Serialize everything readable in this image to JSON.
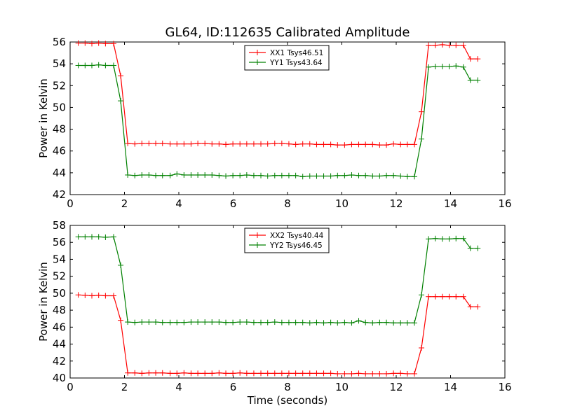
{
  "title": "GL64, ID:112635 Calibrated Amplitude",
  "colors": {
    "red": "#ff0000",
    "green": "#008000"
  },
  "chart_data": [
    {
      "type": "line",
      "xlabel": "",
      "ylabel": "Power in Kelvin",
      "xlim": [
        0,
        16
      ],
      "ylim": [
        42,
        56
      ],
      "xticks": [
        "0",
        "2",
        "4",
        "6",
        "8",
        "10",
        "12",
        "14",
        "16"
      ],
      "yticks": [
        "42",
        "44",
        "46",
        "48",
        "50",
        "52",
        "54",
        "56"
      ],
      "legend_placement": "upper-center",
      "grid": false,
      "series": [
        {
          "name": "XX1 Tsys46.51",
          "color": "#ff0000",
          "x": [
            0.3,
            0.55,
            0.8,
            1.05,
            1.3,
            1.6,
            1.86,
            2.12,
            2.38,
            2.64,
            2.9,
            3.15,
            3.4,
            3.68,
            3.93,
            4.19,
            4.45,
            4.7,
            4.96,
            5.22,
            5.48,
            5.73,
            5.99,
            6.25,
            6.5,
            6.76,
            7.02,
            7.27,
            7.53,
            7.79,
            8.05,
            8.3,
            8.56,
            8.82,
            9.07,
            9.33,
            9.59,
            9.84,
            10.1,
            10.36,
            10.62,
            10.87,
            11.13,
            11.39,
            11.64,
            11.9,
            12.16,
            12.41,
            12.67,
            12.93,
            13.19,
            13.44,
            13.7,
            13.95,
            14.2,
            14.47,
            14.73,
            15.0
          ],
          "y": [
            55.9,
            55.9,
            55.85,
            55.9,
            55.85,
            55.85,
            52.9,
            46.7,
            46.65,
            46.7,
            46.7,
            46.7,
            46.7,
            46.65,
            46.65,
            46.65,
            46.65,
            46.7,
            46.7,
            46.65,
            46.65,
            46.6,
            46.65,
            46.65,
            46.65,
            46.65,
            46.65,
            46.65,
            46.7,
            46.7,
            46.65,
            46.6,
            46.65,
            46.65,
            46.6,
            46.6,
            46.6,
            46.55,
            46.55,
            46.6,
            46.6,
            46.6,
            46.6,
            46.55,
            46.55,
            46.65,
            46.6,
            46.6,
            46.6,
            49.6,
            55.7,
            55.7,
            55.75,
            55.7,
            55.7,
            55.7,
            54.45,
            54.45
          ]
        },
        {
          "name": "YY1 Tsys43.64",
          "color": "#008000",
          "x": [
            0.3,
            0.55,
            0.8,
            1.05,
            1.3,
            1.6,
            1.86,
            2.12,
            2.38,
            2.64,
            2.9,
            3.15,
            3.4,
            3.68,
            3.93,
            4.19,
            4.45,
            4.7,
            4.96,
            5.22,
            5.48,
            5.73,
            5.99,
            6.25,
            6.5,
            6.76,
            7.02,
            7.27,
            7.53,
            7.79,
            8.05,
            8.3,
            8.56,
            8.82,
            9.07,
            9.33,
            9.59,
            9.84,
            10.1,
            10.36,
            10.62,
            10.87,
            11.13,
            11.39,
            11.64,
            11.9,
            12.16,
            12.41,
            12.67,
            12.93,
            13.19,
            13.44,
            13.7,
            13.95,
            14.2,
            14.47,
            14.73,
            15.0
          ],
          "y": [
            53.85,
            53.85,
            53.85,
            53.9,
            53.85,
            53.85,
            50.6,
            43.8,
            43.75,
            43.8,
            43.8,
            43.75,
            43.75,
            43.75,
            43.9,
            43.8,
            43.8,
            43.8,
            43.8,
            43.8,
            43.75,
            43.7,
            43.75,
            43.75,
            43.8,
            43.75,
            43.75,
            43.7,
            43.75,
            43.75,
            43.75,
            43.75,
            43.65,
            43.7,
            43.7,
            43.7,
            43.7,
            43.75,
            43.75,
            43.8,
            43.75,
            43.75,
            43.7,
            43.7,
            43.75,
            43.75,
            43.7,
            43.65,
            43.65,
            47.1,
            53.7,
            53.75,
            53.75,
            53.75,
            53.8,
            53.7,
            52.5,
            52.5
          ]
        }
      ]
    },
    {
      "type": "line",
      "xlabel": "Time (seconds)",
      "ylabel": "Power in Kelvin",
      "xlim": [
        0,
        16
      ],
      "ylim": [
        40,
        58
      ],
      "xticks": [
        "0",
        "2",
        "4",
        "6",
        "8",
        "10",
        "12",
        "14",
        "16"
      ],
      "yticks": [
        "40",
        "42",
        "44",
        "46",
        "48",
        "50",
        "52",
        "54",
        "56",
        "58"
      ],
      "legend_placement": "upper-center",
      "grid": false,
      "series": [
        {
          "name": "XX2 Tsys40.44",
          "color": "#ff0000",
          "x": [
            0.3,
            0.55,
            0.8,
            1.05,
            1.3,
            1.6,
            1.86,
            2.12,
            2.38,
            2.64,
            2.9,
            3.15,
            3.4,
            3.68,
            3.93,
            4.19,
            4.45,
            4.7,
            4.96,
            5.22,
            5.48,
            5.73,
            5.99,
            6.25,
            6.5,
            6.76,
            7.02,
            7.27,
            7.53,
            7.79,
            8.05,
            8.3,
            8.56,
            8.82,
            9.07,
            9.33,
            9.59,
            9.84,
            10.1,
            10.36,
            10.62,
            10.87,
            11.13,
            11.39,
            11.64,
            11.9,
            12.16,
            12.41,
            12.67,
            12.93,
            13.19,
            13.44,
            13.7,
            13.95,
            14.2,
            14.47,
            14.73,
            15.0
          ],
          "y": [
            49.8,
            49.75,
            49.7,
            49.75,
            49.7,
            49.7,
            46.8,
            40.6,
            40.6,
            40.55,
            40.6,
            40.6,
            40.6,
            40.55,
            40.55,
            40.6,
            40.55,
            40.55,
            40.55,
            40.55,
            40.6,
            40.55,
            40.55,
            40.6,
            40.55,
            40.55,
            40.55,
            40.55,
            40.55,
            40.55,
            40.55,
            40.55,
            40.55,
            40.55,
            40.55,
            40.55,
            40.55,
            40.5,
            40.5,
            40.5,
            40.55,
            40.5,
            40.5,
            40.5,
            40.5,
            40.55,
            40.55,
            40.5,
            40.5,
            43.55,
            49.6,
            49.6,
            49.6,
            49.6,
            49.6,
            49.6,
            48.4,
            48.4
          ]
        },
        {
          "name": "YY2 Tsys46.45",
          "color": "#008000",
          "x": [
            0.3,
            0.55,
            0.8,
            1.05,
            1.3,
            1.6,
            1.86,
            2.12,
            2.38,
            2.64,
            2.9,
            3.15,
            3.4,
            3.68,
            3.93,
            4.19,
            4.45,
            4.7,
            4.96,
            5.22,
            5.48,
            5.73,
            5.99,
            6.25,
            6.5,
            6.76,
            7.02,
            7.27,
            7.53,
            7.79,
            8.05,
            8.3,
            8.56,
            8.82,
            9.07,
            9.33,
            9.59,
            9.84,
            10.1,
            10.36,
            10.62,
            10.87,
            11.13,
            11.39,
            11.64,
            11.9,
            12.16,
            12.41,
            12.67,
            12.93,
            13.19,
            13.44,
            13.7,
            13.95,
            14.2,
            14.47,
            14.73,
            15.0
          ],
          "y": [
            56.65,
            56.65,
            56.65,
            56.65,
            56.6,
            56.65,
            53.3,
            46.6,
            46.55,
            46.6,
            46.6,
            46.6,
            46.55,
            46.55,
            46.55,
            46.55,
            46.6,
            46.6,
            46.6,
            46.6,
            46.6,
            46.55,
            46.55,
            46.6,
            46.6,
            46.55,
            46.55,
            46.55,
            46.6,
            46.55,
            46.55,
            46.55,
            46.55,
            46.5,
            46.55,
            46.5,
            46.55,
            46.5,
            46.55,
            46.5,
            46.75,
            46.55,
            46.5,
            46.55,
            46.55,
            46.5,
            46.5,
            46.5,
            46.5,
            49.8,
            56.4,
            56.45,
            56.4,
            56.4,
            56.45,
            56.45,
            55.3,
            55.3
          ]
        }
      ]
    }
  ]
}
